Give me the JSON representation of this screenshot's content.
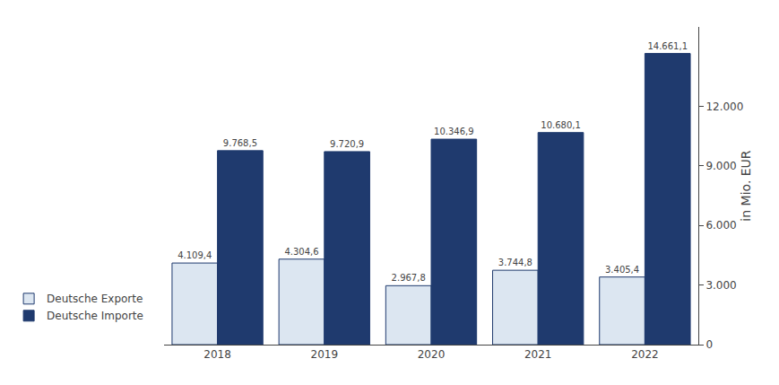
{
  "chart_data": {
    "type": "bar",
    "categories": [
      "2018",
      "2019",
      "2020",
      "2021",
      "2022"
    ],
    "series": [
      {
        "name": "Deutsche Exporte",
        "color": "#dce6f1",
        "values": [
          4109.4,
          4304.6,
          2967.8,
          3744.8,
          3405.4
        ],
        "value_labels": [
          "4.109,4",
          "4.304,6",
          "2.967,8",
          "3.744,8",
          "3.405,4"
        ]
      },
      {
        "name": "Deutsche Importe",
        "color": "#1f3a6e",
        "values": [
          9768.5,
          9720.9,
          10346.9,
          10680.1,
          14661.1
        ],
        "value_labels": [
          "9.768,5",
          "9.720,9",
          "10.346,9",
          "10.680,1",
          "14.661,1"
        ]
      }
    ],
    "ylabel": "in Mio. EUR",
    "ylim": [
      0,
      16000
    ],
    "yticks": [
      0,
      {
        "value": 3000,
        "label": "3.000"
      },
      {
        "value": 6000,
        "label": "6.000"
      },
      {
        "value": 9000,
        "label": "9.000"
      },
      {
        "value": 12000,
        "label": "12.000"
      }
    ],
    "grid": false,
    "legend": "lower left",
    "data_labels": true
  }
}
